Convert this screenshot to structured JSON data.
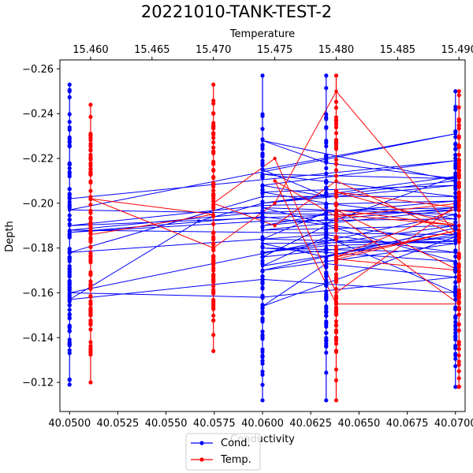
{
  "chart_data": {
    "type": "line",
    "title": "20221010-TANK-TEST-2",
    "xlabel": "Conductivity",
    "x2label": "Temperature",
    "ylabel": "Depth",
    "xlim": [
      40.0495,
      40.0705
    ],
    "x2lim": [
      15.4575,
      15.4905
    ],
    "ylim": [
      -0.264,
      -0.107
    ],
    "y_inverted": true,
    "x_ticks": [
      "40.0500",
      "40.0525",
      "40.0550",
      "40.0575",
      "40.0600",
      "40.0625",
      "40.0650",
      "40.0675",
      "40.0700"
    ],
    "x_tick_values": [
      40.05,
      40.0525,
      40.055,
      40.0575,
      40.06,
      40.0625,
      40.065,
      40.0675,
      40.07
    ],
    "x2_ticks": [
      "15.460",
      "15.465",
      "15.470",
      "15.475",
      "15.480",
      "15.485",
      "15.490"
    ],
    "x2_tick_values": [
      15.46,
      15.465,
      15.47,
      15.475,
      15.48,
      15.485,
      15.49
    ],
    "y_ticks": [
      "−0.26",
      "−0.24",
      "−0.22",
      "−0.20",
      "−0.18",
      "−0.16",
      "−0.14",
      "−0.12"
    ],
    "y_tick_values": [
      -0.26,
      -0.24,
      -0.22,
      -0.2,
      -0.18,
      -0.16,
      -0.14,
      -0.12
    ],
    "legend_placement": "bottom-center",
    "series": [
      {
        "name": "Cond.",
        "color": "#0000ff",
        "axis": "bottom",
        "x": [
          40.05,
          40.07,
          40.06,
          40.0633,
          40.06,
          40.07,
          40.05,
          40.0633,
          40.06,
          40.07,
          40.06,
          40.05,
          40.07,
          40.06,
          40.0633,
          40.07,
          40.06,
          40.05,
          40.0567,
          40.06,
          40.07,
          40.06,
          40.0633,
          40.07,
          40.06,
          40.07,
          40.06,
          40.05,
          40.0633,
          40.07,
          40.06,
          40.07,
          40.0633,
          40.06,
          40.07,
          40.06,
          40.0633,
          40.07,
          40.06,
          40.05,
          40.07,
          40.06,
          40.0633,
          40.07,
          40.06,
          40.07,
          40.06,
          40.0633,
          40.07,
          40.06,
          40.05,
          40.06,
          40.07,
          40.06,
          40.0633,
          40.07,
          40.06,
          40.07,
          40.06,
          40.0633,
          40.07,
          40.06,
          40.05,
          40.07,
          40.06,
          40.07,
          40.06,
          40.0633,
          40.07
        ],
        "y": [
          -0.202,
          -0.219,
          -0.208,
          -0.203,
          -0.215,
          -0.231,
          -0.197,
          -0.195,
          -0.19,
          -0.198,
          -0.196,
          -0.188,
          -0.186,
          -0.172,
          -0.185,
          -0.16,
          -0.166,
          -0.157,
          -0.192,
          -0.2,
          -0.21,
          -0.228,
          -0.218,
          -0.211,
          -0.213,
          -0.203,
          -0.203,
          -0.178,
          -0.186,
          -0.178,
          -0.18,
          -0.174,
          -0.19,
          -0.176,
          -0.185,
          -0.154,
          -0.173,
          -0.167,
          -0.158,
          -0.16,
          -0.195,
          -0.198,
          -0.191,
          -0.212,
          -0.2,
          -0.208,
          -0.205,
          -0.2,
          -0.193,
          -0.192,
          -0.187,
          -0.194,
          -0.183,
          -0.182,
          -0.176,
          -0.189,
          -0.17,
          -0.182,
          -0.184,
          -0.196,
          -0.201,
          -0.199,
          -0.19,
          -0.197,
          -0.188,
          -0.19,
          -0.178,
          -0.181,
          -0.183
        ]
      },
      {
        "name": "Temp.",
        "color": "#ff0000",
        "axis": "top",
        "x": [
          15.46,
          15.47,
          15.46,
          15.47,
          15.475,
          15.48,
          15.49,
          15.48,
          15.475,
          15.47,
          15.475,
          15.48,
          15.49,
          15.48,
          15.475,
          15.48,
          15.49,
          15.48,
          15.49,
          15.48,
          15.49,
          15.48,
          15.49,
          15.48,
          15.49,
          15.48,
          15.49
        ],
        "y": [
          -0.186,
          -0.195,
          -0.202,
          -0.18,
          -0.2,
          -0.25,
          -0.185,
          -0.21,
          -0.19,
          -0.2,
          -0.22,
          -0.16,
          -0.2,
          -0.194,
          -0.21,
          -0.155,
          -0.155,
          -0.195,
          -0.19,
          -0.205,
          -0.198,
          -0.176,
          -0.188,
          -0.175,
          -0.17,
          -0.197,
          -0.19
        ]
      }
    ],
    "vertical_clusters": [
      {
        "series": "Cond.",
        "x": 40.05,
        "ymin": -0.253,
        "ymax": -0.119
      },
      {
        "series": "Cond.",
        "x": 40.06,
        "ymin": -0.257,
        "ymax": -0.112
      },
      {
        "series": "Cond.",
        "x": 40.0633,
        "ymin": -0.257,
        "ymax": -0.112
      },
      {
        "series": "Cond.",
        "x": 40.07,
        "ymin": -0.25,
        "ymax": -0.118
      },
      {
        "series": "Temp.",
        "x": 15.46,
        "ymin": -0.244,
        "ymax": -0.12
      },
      {
        "series": "Temp.",
        "x": 15.47,
        "ymin": -0.253,
        "ymax": -0.134
      },
      {
        "series": "Temp.",
        "x": 15.48,
        "ymin": -0.257,
        "ymax": -0.112
      },
      {
        "series": "Temp.",
        "x": 15.49,
        "ymin": -0.25,
        "ymax": -0.118
      }
    ]
  }
}
